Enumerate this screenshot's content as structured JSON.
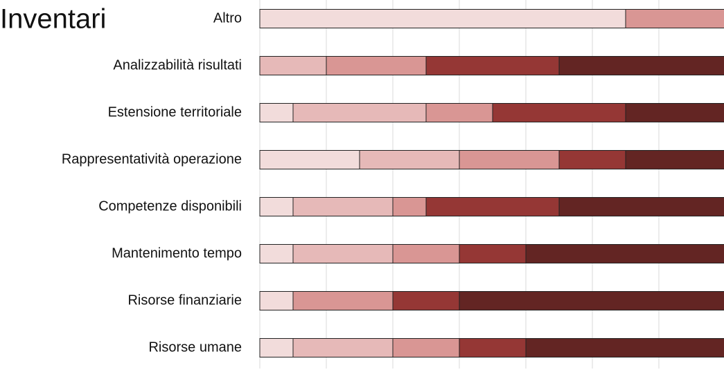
{
  "chart_data": {
    "type": "stacked-barh",
    "title": "Inventari",
    "categories": [
      "Altro",
      "Analizzabilità risultati",
      "Estensione territoriale",
      "Rappresentatività operazione",
      "Competenze disponibili",
      "Mantenimento tempo",
      "Risorse finanziarie",
      "Risorse umane"
    ],
    "series": [
      {
        "color": "#f2dcdb",
        "values": [
          11,
          0,
          1,
          3,
          1,
          1,
          1,
          1
        ]
      },
      {
        "color": "#e6b9b8",
        "values": [
          0,
          2,
          4,
          3,
          3,
          3,
          0,
          3
        ]
      },
      {
        "color": "#d99694",
        "values": [
          3,
          3,
          2,
          3,
          1,
          2,
          3,
          2
        ]
      },
      {
        "color": "#953735",
        "values": [
          0,
          4,
          4,
          2,
          4,
          2,
          2,
          2
        ]
      },
      {
        "color": "#632523",
        "values": [
          0,
          5,
          3,
          3,
          5,
          6,
          8,
          6
        ]
      }
    ],
    "xlim": [
      0,
      14
    ],
    "xticks": [
      0,
      2,
      4,
      6,
      8,
      10,
      12,
      14
    ],
    "grid": true
  }
}
